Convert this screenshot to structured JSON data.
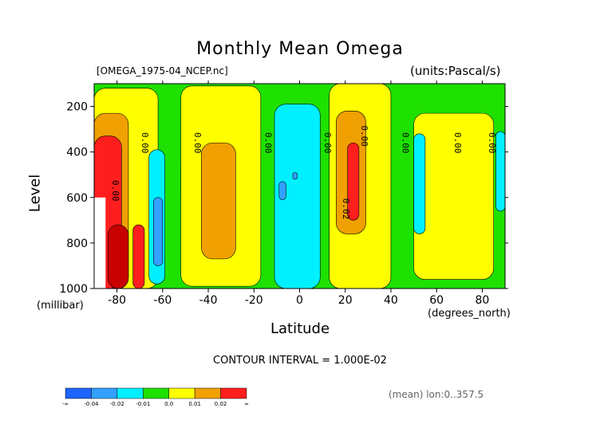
{
  "chart_data": {
    "type": "heatmap",
    "title": "Monthly Mean Omega",
    "file_label": "[OMEGA_1975-04_NCEP.nc]",
    "units_label": "(units:Pascal/s)",
    "xlabel": "Latitude",
    "xunit": "(degrees_north)",
    "ylabel": "Level",
    "yunit": "(millibar)",
    "contour_interval_label": "CONTOUR INTERVAL = 1.000E-02",
    "mean_label": "(mean) lon:0..357.5",
    "xlim": [
      -90,
      90
    ],
    "ylim": [
      1000,
      100
    ],
    "x_ticks": [
      -80,
      -60,
      -40,
      -20,
      0,
      20,
      40,
      60,
      80
    ],
    "x_tick_labels": [
      "-80",
      "-60",
      "-40",
      "-20",
      "0",
      "20",
      "40",
      "60",
      "80"
    ],
    "y_ticks": [
      200,
      400,
      600,
      800,
      1000
    ],
    "y_tick_labels": [
      "200",
      "400",
      "600",
      "800",
      "1000"
    ],
    "contour_label": "0.00",
    "contour_labels": [
      {
        "lat": -82,
        "lev": 570,
        "text": "0.00"
      },
      {
        "lat": -69,
        "lev": 360,
        "text": "0.00"
      },
      {
        "lat": -46,
        "lev": 360,
        "text": "0.00"
      },
      {
        "lat": -15,
        "lev": 360,
        "text": "0.00"
      },
      {
        "lat": 11,
        "lev": 360,
        "text": "0.00"
      },
      {
        "lat": 27,
        "lev": 330,
        "text": "0.00"
      },
      {
        "lat": 45,
        "lev": 360,
        "text": "0.00"
      },
      {
        "lat": 68,
        "lev": 360,
        "text": "0.00"
      },
      {
        "lat": 83,
        "lev": 360,
        "text": "0.00"
      },
      {
        "lat": 19,
        "lev": 650,
        "text": "0.02"
      }
    ],
    "levels_colors": [
      {
        "range": "< -0.04",
        "color": "#1e64ff"
      },
      {
        "range": "-0.04 to -0.02",
        "color": "#32a0ff"
      },
      {
        "range": "-0.02 to -0.01",
        "color": "#00f0ff"
      },
      {
        "range": "-0.01 to 0.0",
        "color": "#1ee100"
      },
      {
        "range": "0.0 to 0.01",
        "color": "#ffff00"
      },
      {
        "range": "0.01 to 0.02",
        "color": "#f0a000"
      },
      {
        "range": "> 0.02",
        "color": "#ff1e1e"
      }
    ],
    "colorbar_labels": [
      "-∞",
      "-0.04",
      "-0.02",
      "-0.01",
      "0.0",
      "0.01",
      "0.02",
      "∞"
    ],
    "regions": [
      {
        "name": "green-base",
        "color": "#1ee100",
        "lat": [
          -90,
          90
        ],
        "lev": [
          100,
          1000
        ]
      },
      {
        "name": "yellow-south-high-lat",
        "color": "#ffff00",
        "lat": [
          -90,
          -62
        ],
        "lev": [
          120,
          1000
        ]
      },
      {
        "name": "orange-south-high-lat",
        "color": "#f0a000",
        "lat": [
          -90,
          -75
        ],
        "lev": [
          230,
          1000
        ]
      },
      {
        "name": "red-south-pole",
        "color": "#ff1e1e",
        "lat": [
          -90,
          -78
        ],
        "lev": [
          330,
          1000
        ]
      },
      {
        "name": "dark-red-south-pole",
        "color": "#c80000",
        "lat": [
          -84,
          -75
        ],
        "lev": [
          720,
          1000
        ]
      },
      {
        "name": "red-south-60",
        "color": "#ff1e1e",
        "lat": [
          -73,
          -68
        ],
        "lev": [
          720,
          1000
        ]
      },
      {
        "name": "cyan-south-60",
        "color": "#00f0ff",
        "lat": [
          -66,
          -59
        ],
        "lev": [
          390,
          980
        ]
      },
      {
        "name": "blue-south-60",
        "color": "#32a0ff",
        "lat": [
          -64,
          -60
        ],
        "lev": [
          600,
          900
        ]
      },
      {
        "name": "cyan-south-50",
        "color": "#00f0ff",
        "lat": [
          -52,
          -49
        ],
        "lev": [
          440,
          620
        ]
      },
      {
        "name": "yellow-south-midlat",
        "color": "#ffff00",
        "lat": [
          -52,
          -17
        ],
        "lev": [
          110,
          990
        ]
      },
      {
        "name": "orange-south-midlat",
        "color": "#f0a000",
        "lat": [
          -43,
          -28
        ],
        "lev": [
          360,
          870
        ]
      },
      {
        "name": "cyan-tropics",
        "color": "#00f0ff",
        "lat": [
          -11,
          9
        ],
        "lev": [
          190,
          1000
        ]
      },
      {
        "name": "blue-tropics-a",
        "color": "#32a0ff",
        "lat": [
          -9,
          -6
        ],
        "lev": [
          530,
          610
        ]
      },
      {
        "name": "blue-tropics-b",
        "color": "#32a0ff",
        "lat": [
          -3,
          -1
        ],
        "lev": [
          490,
          520
        ]
      },
      {
        "name": "yellow-north-subtropics",
        "color": "#ffff00",
        "lat": [
          13,
          40
        ],
        "lev": [
          100,
          1000
        ]
      },
      {
        "name": "orange-north-subtropics",
        "color": "#f0a000",
        "lat": [
          16,
          29
        ],
        "lev": [
          220,
          760
        ]
      },
      {
        "name": "red-north-subtropics",
        "color": "#ff1e1e",
        "lat": [
          21,
          26
        ],
        "lev": [
          360,
          700
        ]
      },
      {
        "name": "yellow-north-midlat",
        "color": "#ffff00",
        "lat": [
          50,
          85
        ],
        "lev": [
          230,
          960
        ]
      },
      {
        "name": "cyan-north-50",
        "color": "#00f0ff",
        "lat": [
          50,
          55
        ],
        "lev": [
          320,
          760
        ]
      },
      {
        "name": "cyan-north-pole",
        "color": "#00f0ff",
        "lat": [
          86,
          90
        ],
        "lev": [
          310,
          660
        ]
      },
      {
        "name": "white-missing",
        "color": "#ffffff",
        "lat": [
          -90,
          -85
        ],
        "lev": [
          600,
          1000
        ]
      }
    ]
  }
}
